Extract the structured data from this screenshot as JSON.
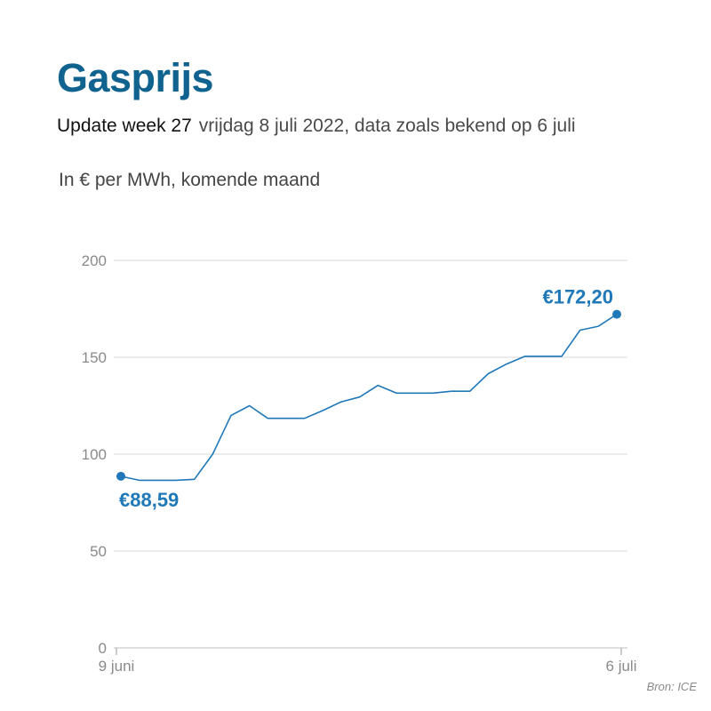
{
  "header": {
    "title": "Gasprijs",
    "week_label": "Update week 27",
    "date_label": "vrijdag 8 juli 2022, data zoals bekend op 6 juli",
    "unit_label": "In € per MWh, komende maand"
  },
  "footer": {
    "source": "Bron: ICE"
  },
  "colors": {
    "title": "#10638f",
    "line": "#1f78b8",
    "grid": "#d9d9d9",
    "axis_text": "#8a8a8a"
  },
  "chart_data": {
    "type": "line",
    "title": "Gasprijs",
    "ylabel": "In € per MWh, komende maand",
    "xlabel": "",
    "ylim": [
      0,
      200
    ],
    "yticks": [
      0,
      50,
      100,
      150,
      200
    ],
    "ytick_labels": [
      "0",
      "50",
      "100",
      "150",
      "200"
    ],
    "xtick_labels": [
      "9 juni",
      "6 juli"
    ],
    "grid": true,
    "series": [
      {
        "values": [
          88.59,
          86.5,
          86.5,
          86.5,
          87,
          100,
          120,
          125,
          118.5,
          118.5,
          118.5,
          122.5,
          127,
          129.5,
          135.5,
          131.5,
          131.5,
          131.5,
          132.5,
          132.5,
          141.5,
          146.5,
          150.5,
          150.5,
          150.5,
          164,
          166,
          172.2
        ]
      }
    ],
    "annotations": [
      {
        "point": "first",
        "text": "€88,59"
      },
      {
        "point": "last",
        "text": "€172,20"
      }
    ]
  }
}
